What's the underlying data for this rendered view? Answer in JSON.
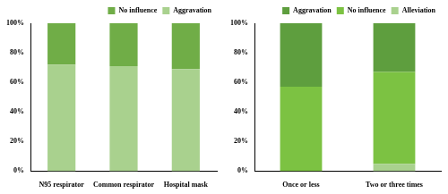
{
  "chart_data": [
    {
      "type": "bar",
      "stacked": true,
      "grid": false,
      "legend": "upper right",
      "categories": [
        "N95 respirator",
        "Common respirator",
        "Hospital mask"
      ],
      "series": [
        {
          "name": "Aggravation",
          "color": "#a9d18e",
          "values": [
            72,
            71,
            69
          ]
        },
        {
          "name": "No influence",
          "color": "#70ad47",
          "values": [
            28,
            29,
            31
          ]
        }
      ],
      "ylim": [
        0,
        100
      ],
      "yticks": [
        {
          "value": 0,
          "label": "0%"
        },
        {
          "value": 20,
          "label": "20%"
        },
        {
          "value": 40,
          "label": "40%"
        },
        {
          "value": 60,
          "label": "60%"
        },
        {
          "value": 80,
          "label": "80%"
        },
        {
          "value": 100,
          "label": "100%"
        }
      ]
    },
    {
      "type": "bar",
      "stacked": true,
      "grid": false,
      "legend": "upper right",
      "categories": [
        "Once or less",
        "Two or three times"
      ],
      "series": [
        {
          "name": "Alleviation",
          "color": "#a9d18e",
          "values": [
            0,
            5
          ]
        },
        {
          "name": "No influence",
          "color": "#7cc242",
          "values": [
            57,
            62
          ]
        },
        {
          "name": "Aggravation",
          "color": "#5e9e3e",
          "values": [
            43,
            33
          ]
        }
      ],
      "ylim": [
        0,
        100
      ],
      "yticks": [
        {
          "value": 0,
          "label": "0%"
        },
        {
          "value": 20,
          "label": "20%"
        },
        {
          "value": 40,
          "label": "40%"
        },
        {
          "value": 60,
          "label": "60%"
        },
        {
          "value": 80,
          "label": "80%"
        },
        {
          "value": 100,
          "label": "100%"
        }
      ]
    }
  ]
}
